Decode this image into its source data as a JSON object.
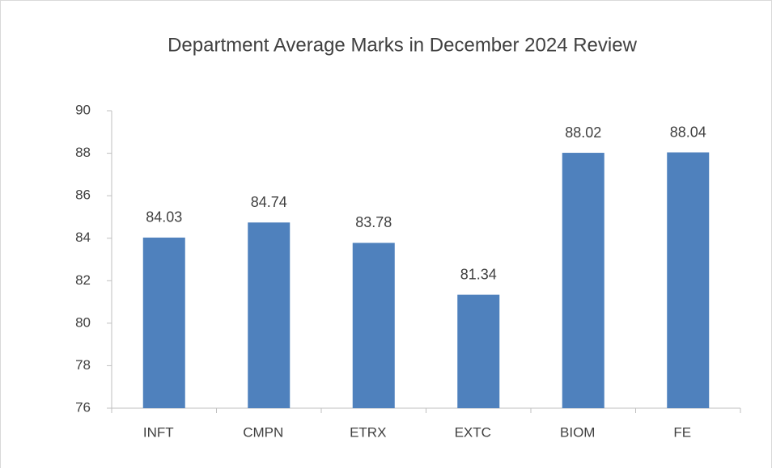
{
  "chart_data": {
    "type": "bar",
    "title": "Department Average Marks in December 2024 Review",
    "categories": [
      "INFT",
      "CMPN",
      "ETRX",
      "EXTC",
      "BIOM",
      "FE"
    ],
    "values": [
      84.03,
      84.74,
      83.78,
      81.34,
      88.02,
      88.04
    ],
    "color": "#4f81bd",
    "ylim": [
      76,
      90
    ],
    "yticks": [
      76,
      78,
      80,
      82,
      84,
      86,
      88,
      90
    ],
    "grid": false
  }
}
